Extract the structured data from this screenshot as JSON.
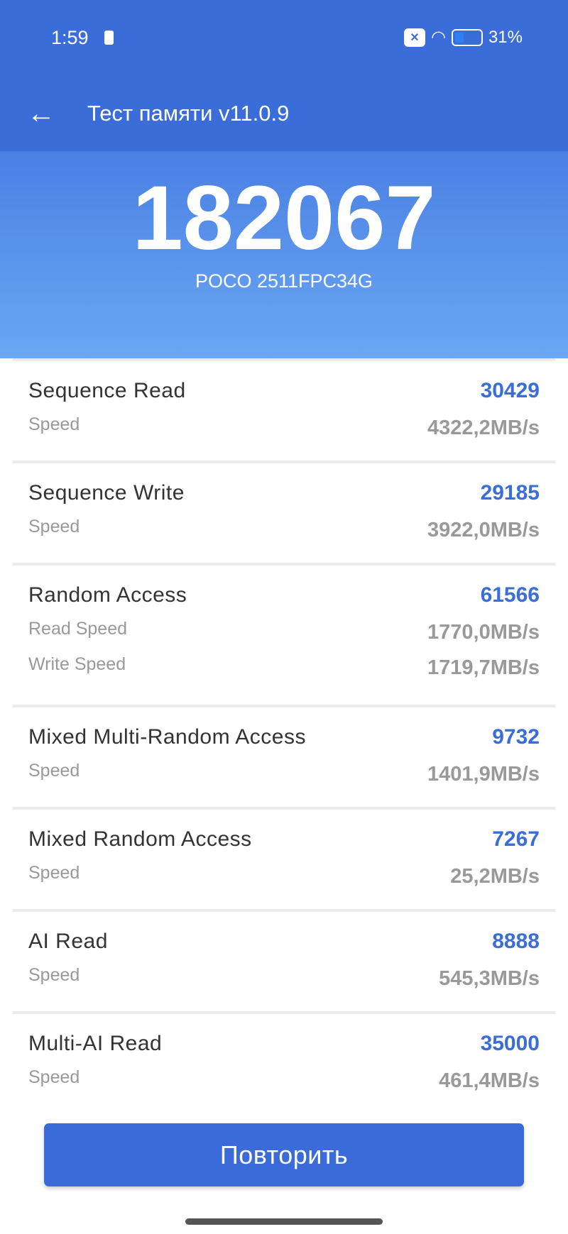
{
  "status_bar": {
    "time": "1:59",
    "battery_percent": "31%",
    "battery_level": 0.31
  },
  "toolbar": {
    "title": "Тест памяти v11.0.9",
    "back_icon": "arrow-left-icon"
  },
  "summary": {
    "score": "182067",
    "device": "POCO 2511FPC34G"
  },
  "results": [
    {
      "name": "Sequence Read",
      "score": "30429",
      "metrics": [
        {
          "label": "Speed",
          "value": "4322,2MB/s"
        }
      ]
    },
    {
      "name": "Sequence Write",
      "score": "29185",
      "metrics": [
        {
          "label": "Speed",
          "value": "3922,0MB/s"
        }
      ]
    },
    {
      "name": "Random Access",
      "score": "61566",
      "metrics": [
        {
          "label": "Read Speed",
          "value": "1770,0MB/s"
        },
        {
          "label": "Write Speed",
          "value": "1719,7MB/s"
        }
      ]
    },
    {
      "name": "Mixed Multi-Random Access",
      "score": "9732",
      "metrics": [
        {
          "label": "Speed",
          "value": "1401,9MB/s"
        }
      ]
    },
    {
      "name": "Mixed Random Access",
      "score": "7267",
      "metrics": [
        {
          "label": "Speed",
          "value": "25,2MB/s"
        }
      ]
    },
    {
      "name": "AI Read",
      "score": "8888",
      "metrics": [
        {
          "label": "Speed",
          "value": "545,3MB/s"
        }
      ]
    },
    {
      "name": "Multi-AI Read",
      "score": "35000",
      "metrics": [
        {
          "label": "Speed",
          "value": "461,4MB/s"
        }
      ]
    }
  ],
  "actions": {
    "retry_label": "Повторить"
  },
  "colors": {
    "header": "#3b6dd9",
    "accent": "#3b6dd9",
    "button": "#3a6bd8"
  }
}
